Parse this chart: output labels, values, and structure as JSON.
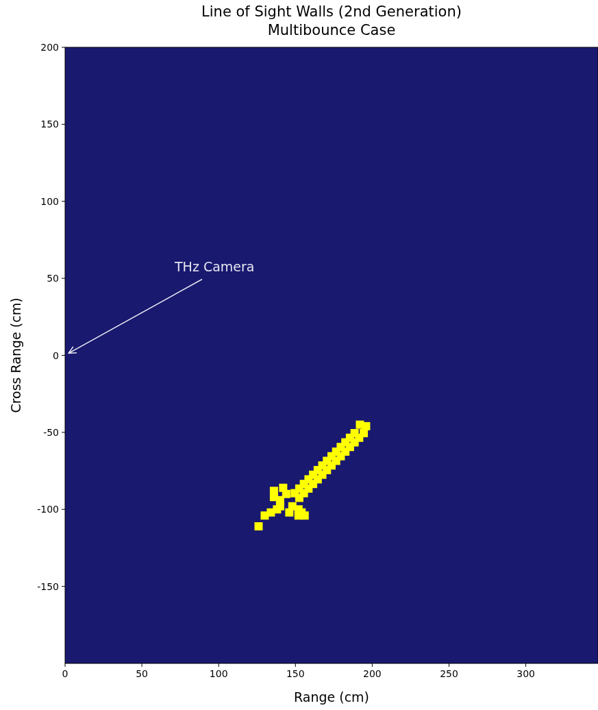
{
  "chart_data": {
    "type": "scatter",
    "title": "Line of Sight Walls (2nd Generation)\nMultibounce Case",
    "xlabel": "Range (cm)",
    "ylabel": "Cross Range (cm)",
    "xlim": [
      0,
      347
    ],
    "ylim": [
      -200,
      200
    ],
    "xticks": [
      0,
      50,
      100,
      150,
      200,
      250,
      300
    ],
    "yticks": [
      -150,
      -100,
      -50,
      0,
      50,
      100,
      150,
      200
    ],
    "grid": false,
    "marker": "square",
    "annotations": [
      "THz Camera"
    ],
    "series": [
      {
        "color": "#ffff00",
        "x": [
          149.5,
          152.5,
          152.5,
          155.5,
          155.5,
          158.5,
          158.5,
          161.5,
          161.5,
          164.5,
          164.5,
          167.5,
          167.5,
          170.5,
          170.5,
          173.5,
          173.5,
          176.5,
          176.5,
          179.5,
          179.5,
          182.5,
          182.5,
          185.5,
          185.5,
          188.5,
          188.5,
          191.5,
          194.5,
          196,
          192,
          140,
          144,
          148,
          152,
          140,
          136,
          136,
          130,
          126,
          134,
          156,
          152,
          146,
          142,
          138,
          154
        ],
        "values": [
          -89.5,
          -92.5,
          -86.5,
          -89.5,
          -83.5,
          -86.5,
          -80.5,
          -83.5,
          -77.5,
          -80.5,
          -74.5,
          -77.5,
          -71.5,
          -74.5,
          -68.5,
          -71.5,
          -65.5,
          -68.5,
          -62.5,
          -65.5,
          -59.5,
          -62.5,
          -56.5,
          -59.5,
          -53.5,
          -56.5,
          -50.5,
          -53.5,
          -50.5,
          -46,
          -45,
          -94,
          -90,
          -98,
          -100,
          -98,
          -88,
          -92,
          -104,
          -111,
          -102,
          -104,
          -104,
          -102,
          -86,
          -100,
          -102
        ]
      }
    ]
  }
}
